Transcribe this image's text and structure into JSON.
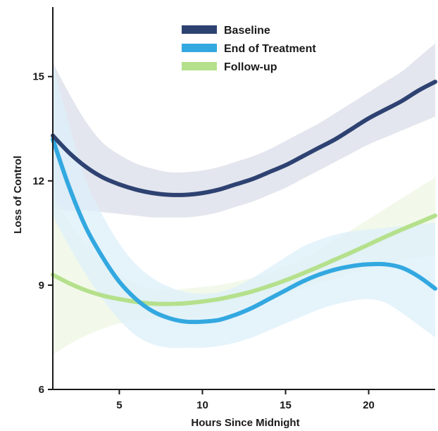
{
  "chart_data": {
    "type": "line",
    "title": "",
    "xlabel": "Hours Since Midnight",
    "ylabel": "Loss of Control",
    "xlim": [
      1,
      24
    ],
    "ylim": [
      6,
      17
    ],
    "x_ticks": [
      5,
      10,
      15,
      20
    ],
    "y_ticks": [
      6,
      9,
      12,
      15
    ],
    "grid": false,
    "legend_position": "top-center",
    "series": [
      {
        "name": "Baseline",
        "color": "#2e4272",
        "band_color": "#d9dde8",
        "x": [
          1,
          2,
          3,
          4,
          5,
          6,
          7,
          8,
          9,
          10,
          11,
          12,
          13,
          14,
          15,
          16,
          17,
          18,
          19,
          20,
          21,
          22,
          23,
          24
        ],
        "y": [
          13.3,
          12.8,
          12.4,
          12.1,
          11.9,
          11.75,
          11.65,
          11.6,
          11.6,
          11.65,
          11.75,
          11.9,
          12.05,
          12.25,
          12.45,
          12.7,
          12.95,
          13.2,
          13.5,
          13.8,
          14.05,
          14.3,
          14.6,
          14.85
        ],
        "lower": [
          11.2,
          11.15,
          11.15,
          11.1,
          11.05,
          11.0,
          10.95,
          10.95,
          10.95,
          11.0,
          11.1,
          11.25,
          11.4,
          11.6,
          11.8,
          12.05,
          12.3,
          12.55,
          12.8,
          13.05,
          13.25,
          13.45,
          13.65,
          13.85
        ],
        "upper": [
          15.4,
          14.5,
          13.7,
          13.1,
          12.75,
          12.5,
          12.35,
          12.25,
          12.25,
          12.3,
          12.4,
          12.55,
          12.7,
          12.9,
          13.15,
          13.4,
          13.65,
          13.95,
          14.25,
          14.55,
          14.85,
          15.15,
          15.55,
          15.95
        ]
      },
      {
        "name": "End of Treatment",
        "color": "#33a8e0",
        "band_color": "#dceff9",
        "x": [
          1,
          2,
          3,
          4,
          5,
          6,
          7,
          8,
          9,
          10,
          11,
          12,
          13,
          14,
          15,
          16,
          17,
          18,
          19,
          20,
          21,
          22,
          23,
          24
        ],
        "y": [
          13.2,
          11.8,
          10.65,
          9.8,
          9.1,
          8.6,
          8.25,
          8.05,
          7.95,
          7.95,
          8.0,
          8.15,
          8.35,
          8.6,
          8.85,
          9.1,
          9.3,
          9.45,
          9.55,
          9.6,
          9.6,
          9.5,
          9.25,
          8.9
        ],
        "lower": [
          11.0,
          10.1,
          9.3,
          8.6,
          8.0,
          7.55,
          7.3,
          7.2,
          7.2,
          7.2,
          7.25,
          7.35,
          7.5,
          7.7,
          7.9,
          8.1,
          8.3,
          8.45,
          8.55,
          8.6,
          8.5,
          8.2,
          7.85,
          7.5
        ],
        "upper": [
          15.4,
          13.6,
          12.0,
          11.0,
          10.2,
          9.6,
          9.2,
          8.95,
          8.8,
          8.75,
          8.8,
          8.95,
          9.2,
          9.5,
          9.8,
          10.1,
          10.3,
          10.45,
          10.55,
          10.6,
          10.65,
          10.7,
          10.75,
          10.8
        ]
      },
      {
        "name": "Follow-up",
        "color": "#b5e08c",
        "band_color": "#eef7e3",
        "x": [
          1,
          2,
          3,
          4,
          5,
          6,
          7,
          8,
          9,
          10,
          11,
          12,
          13,
          14,
          15,
          16,
          17,
          18,
          19,
          20,
          21,
          22,
          23,
          24
        ],
        "y": [
          9.3,
          9.05,
          8.85,
          8.7,
          8.6,
          8.52,
          8.47,
          8.46,
          8.48,
          8.53,
          8.6,
          8.7,
          8.82,
          8.97,
          9.14,
          9.33,
          9.53,
          9.74,
          9.95,
          10.17,
          10.39,
          10.6,
          10.8,
          11.0
        ],
        "lower": [
          7.0,
          7.3,
          7.55,
          7.75,
          7.9,
          8.0,
          8.05,
          8.05,
          8.05,
          8.1,
          8.2,
          8.3,
          8.45,
          8.6,
          8.75,
          8.9,
          9.05,
          9.2,
          9.35,
          9.5,
          9.6,
          9.7,
          9.8,
          9.9
        ],
        "upper": [
          11.6,
          10.8,
          10.15,
          9.65,
          9.3,
          9.05,
          8.9,
          8.85,
          8.9,
          8.95,
          9.0,
          9.1,
          9.2,
          9.35,
          9.55,
          9.75,
          10.0,
          10.3,
          10.6,
          10.9,
          11.2,
          11.5,
          11.8,
          12.1
        ]
      }
    ]
  }
}
